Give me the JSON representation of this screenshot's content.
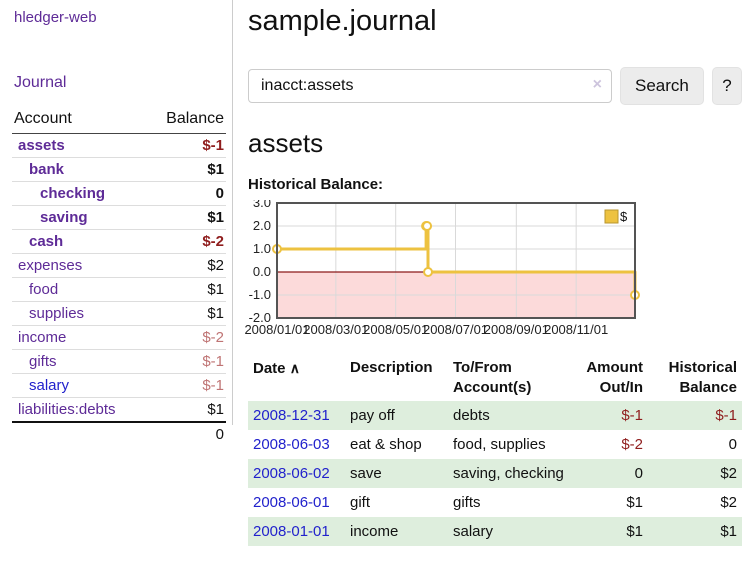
{
  "colors": {
    "link_purple": "#5e2b97",
    "link_blue": "#2222cc",
    "negative_strong": "#8f1d1d",
    "negative_muted": "#bf7474",
    "row_green": "#deeedd",
    "chart_line": "#edc240",
    "chart_negative_fill": "#fcdada",
    "chart_zero_line": "#8b1a1a"
  },
  "sidebar": {
    "app_title": "hledger-web",
    "journal_label": "Journal",
    "accounts_table": {
      "headers": [
        "Account",
        "Balance"
      ],
      "rows": [
        {
          "account": "assets",
          "indent": 0,
          "bold": true,
          "blue": false,
          "balance": "$-1",
          "style": "neg-strong"
        },
        {
          "account": "bank",
          "indent": 1,
          "bold": true,
          "blue": false,
          "balance": "$1",
          "style": ""
        },
        {
          "account": "checking",
          "indent": 2,
          "bold": true,
          "blue": false,
          "balance": "0",
          "style": ""
        },
        {
          "account": "saving",
          "indent": 2,
          "bold": true,
          "blue": false,
          "balance": "$1",
          "style": ""
        },
        {
          "account": "cash",
          "indent": 1,
          "bold": true,
          "blue": false,
          "balance": "$-2",
          "style": "neg-strong"
        },
        {
          "account": "expenses",
          "indent": 0,
          "bold": false,
          "blue": false,
          "balance": "$2",
          "style": ""
        },
        {
          "account": "food",
          "indent": 1,
          "bold": false,
          "blue": false,
          "balance": "$1",
          "style": ""
        },
        {
          "account": "supplies",
          "indent": 1,
          "bold": false,
          "blue": false,
          "balance": "$1",
          "style": ""
        },
        {
          "account": "income",
          "indent": 0,
          "bold": false,
          "blue": false,
          "balance": "$-2",
          "style": "neg-muted"
        },
        {
          "account": "gifts",
          "indent": 1,
          "bold": false,
          "blue": false,
          "balance": "$-1",
          "style": "neg-muted"
        },
        {
          "account": "salary",
          "indent": 1,
          "bold": false,
          "blue": true,
          "balance": "$-1",
          "style": "neg-muted"
        },
        {
          "account": "liabilities:debts",
          "indent": 0,
          "bold": false,
          "blue": false,
          "balance": "$1",
          "style": ""
        }
      ],
      "total": "0"
    }
  },
  "main": {
    "title": "sample.journal",
    "search": {
      "value": "inacct:assets",
      "clear_icon": "×",
      "search_button": "Search",
      "help_button": "?"
    },
    "account_heading": "assets",
    "chart_label": "Historical Balance:",
    "register_table": {
      "headers": {
        "date": "Date",
        "sort_icon": "∧",
        "description": "Description",
        "tofrom_1": "To/From",
        "tofrom_2": "Account(s)",
        "amount_1": "Amount",
        "amount_2": "Out/In",
        "balance_1": "Historical",
        "balance_2": "Balance"
      },
      "rows": [
        {
          "date": "2008-12-31",
          "description": "pay off",
          "accounts": "debts",
          "amount": "$-1",
          "amount_neg": true,
          "balance": "$-1",
          "balance_neg": true,
          "green": true
        },
        {
          "date": "2008-06-03",
          "description": "eat & shop",
          "accounts": "food, supplies",
          "amount": "$-2",
          "amount_neg": true,
          "balance": "0",
          "balance_neg": false,
          "green": false
        },
        {
          "date": "2008-06-02",
          "description": "save",
          "accounts": "saving, checking",
          "amount": "0",
          "amount_neg": false,
          "balance": "$2",
          "balance_neg": false,
          "green": true
        },
        {
          "date": "2008-06-01",
          "description": "gift",
          "accounts": "gifts",
          "amount": "$1",
          "amount_neg": false,
          "balance": "$2",
          "balance_neg": false,
          "green": false
        },
        {
          "date": "2008-01-01",
          "description": "income",
          "accounts": "salary",
          "amount": "$1",
          "amount_neg": false,
          "balance": "$1",
          "balance_neg": false,
          "green": true
        }
      ]
    }
  },
  "chart_data": {
    "type": "line",
    "step": true,
    "title": "Historical Balance",
    "legend": "$",
    "legend_position": "top-right",
    "grid": true,
    "xlim": [
      "2008-01-01",
      "2008-12-31"
    ],
    "ylim": [
      -2,
      3
    ],
    "y_ticks": [
      3.0,
      2.0,
      1.0,
      0.0,
      -1.0,
      -2.0
    ],
    "x_ticks": [
      "2008/01/01",
      "2008/03/01",
      "2008/05/01",
      "2008/07/01",
      "2008/09/01",
      "2008/11/01"
    ],
    "series": [
      {
        "name": "$",
        "color": "#edc240",
        "points": [
          [
            "2008-01-01",
            1
          ],
          [
            "2008-06-01",
            2
          ],
          [
            "2008-06-02",
            2
          ],
          [
            "2008-06-03",
            0
          ],
          [
            "2008-12-31",
            -1
          ]
        ]
      }
    ]
  }
}
